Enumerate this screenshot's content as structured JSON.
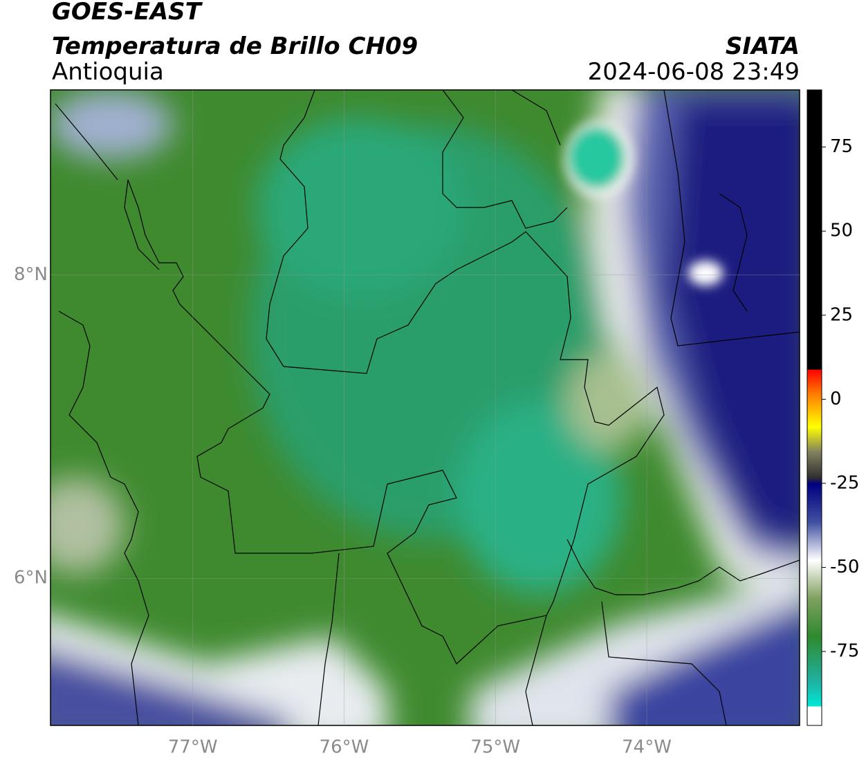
{
  "header": {
    "title": "GOES-EAST",
    "subtitle": "Temperatura de Brillo CH09",
    "region": "Antioquia",
    "source": "SIATA",
    "timestamp": "2024-06-08 23:49"
  },
  "map": {
    "xlim": [
      -77.94,
      -72.99
    ],
    "ylim": [
      5.03,
      9.22
    ],
    "xticks": [
      {
        "value": -77,
        "label": "77°W"
      },
      {
        "value": -76,
        "label": "76°W"
      },
      {
        "value": -75,
        "label": "75°W"
      },
      {
        "value": -74,
        "label": "74°W"
      }
    ],
    "yticks": [
      {
        "value": 8,
        "label": "8°N"
      },
      {
        "value": 6,
        "label": "6°N"
      }
    ]
  },
  "colorbar": {
    "lim": [
      -97,
      92
    ],
    "ticks": [
      75,
      50,
      25,
      0,
      -25,
      -50,
      -75
    ]
  }
}
